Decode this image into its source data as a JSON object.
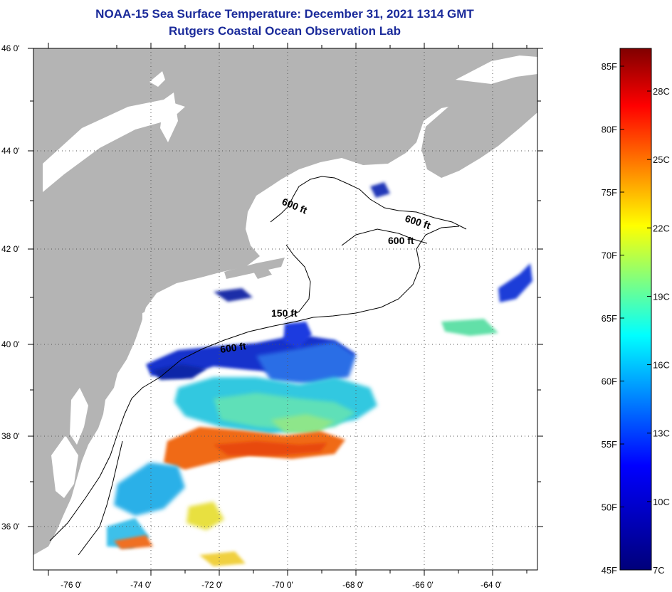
{
  "title_line1": "NOAA-15 Sea Surface Temperature:  December 31, 2021 1314 GMT",
  "title_line2": "Rutgers Coastal Ocean Observation Lab",
  "lat_ticks": [
    "46 0'",
    "44 0'",
    "42 0'",
    "40 0'",
    "38 0'",
    "36 0'"
  ],
  "lon_ticks": [
    "-76 0'",
    "-74 0'",
    "-72 0'",
    "-70 0'",
    "-68 0'",
    "-66 0'",
    "-64 0'"
  ],
  "contour_labels": [
    "600 ft",
    "600 ft",
    "600 ft",
    "150 ft",
    "600 ft"
  ],
  "colorbar": {
    "fahrenheit_labels": [
      "85F",
      "80F",
      "75F",
      "70F",
      "65F",
      "60F",
      "55F",
      "50F",
      "45F"
    ],
    "celsius_labels": [
      "28C",
      "25C",
      "22C",
      "19C",
      "16C",
      "13C",
      "10C",
      "7C"
    ]
  },
  "colors": {
    "title": "#1a2a9a",
    "land": "#b4b4b4",
    "ocean_no_data": "#ffffff"
  }
}
